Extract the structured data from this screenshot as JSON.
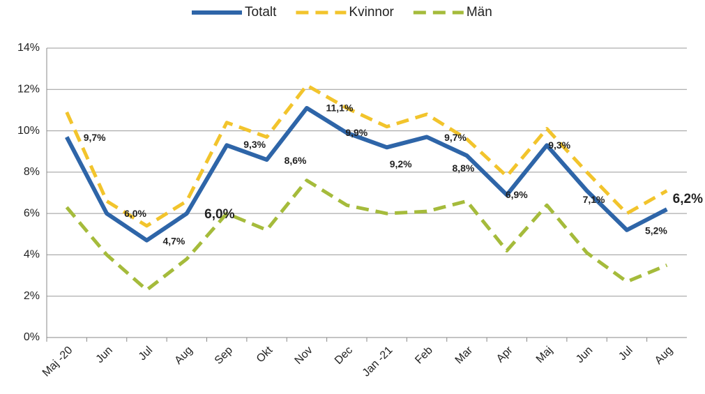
{
  "chart_data": {
    "type": "line",
    "categories": [
      "Maj -20",
      "Jun",
      "Jul",
      "Aug",
      "Sep",
      "Okt",
      "Nov",
      "Dec",
      "Jan -21",
      "Feb",
      "Mar",
      "Apr",
      "Maj",
      "Jun",
      "Jul",
      "Aug"
    ],
    "series": [
      {
        "name": "Totalt",
        "color": "#2e65a8",
        "dash": false,
        "values": [
          9.7,
          6.0,
          4.7,
          6.0,
          9.3,
          8.6,
          11.1,
          9.9,
          9.2,
          9.7,
          8.8,
          6.9,
          9.3,
          7.1,
          5.2,
          6.2
        ],
        "value_labels": [
          "9,7%",
          "6,0%",
          "4,7%",
          "6,0%",
          "9,3%",
          "8,6%",
          "11,1%",
          "9,9%",
          "9,2%",
          "9,7%",
          "8,8%",
          "6,9%",
          "9,3%",
          "7,1%",
          "5,2%",
          "6,2%"
        ]
      },
      {
        "name": "Kvinnor",
        "color": "#f2c42c",
        "dash": true,
        "values": [
          10.9,
          6.6,
          5.4,
          6.6,
          10.4,
          9.7,
          12.2,
          11.1,
          10.2,
          10.8,
          9.6,
          7.8,
          10.1,
          8.0,
          6.0,
          7.1
        ]
      },
      {
        "name": "Män",
        "color": "#a5bb3b",
        "dash": true,
        "values": [
          6.3,
          4.0,
          2.3,
          3.8,
          6.0,
          5.2,
          7.6,
          6.4,
          6.0,
          6.1,
          6.6,
          4.2,
          6.4,
          4.1,
          2.7,
          3.5
        ]
      }
    ],
    "ylim": [
      0,
      14
    ],
    "yticks": [
      {
        "value": 0,
        "label": "0%"
      },
      {
        "value": 2,
        "label": "2%"
      },
      {
        "value": 4,
        "label": "4%"
      },
      {
        "value": 6,
        "label": "6%"
      },
      {
        "value": 8,
        "label": "8%"
      },
      {
        "value": 10,
        "label": "10%"
      },
      {
        "value": 12,
        "label": "12%"
      },
      {
        "value": 14,
        "label": "14%"
      }
    ],
    "grid": true,
    "legend": "top"
  }
}
